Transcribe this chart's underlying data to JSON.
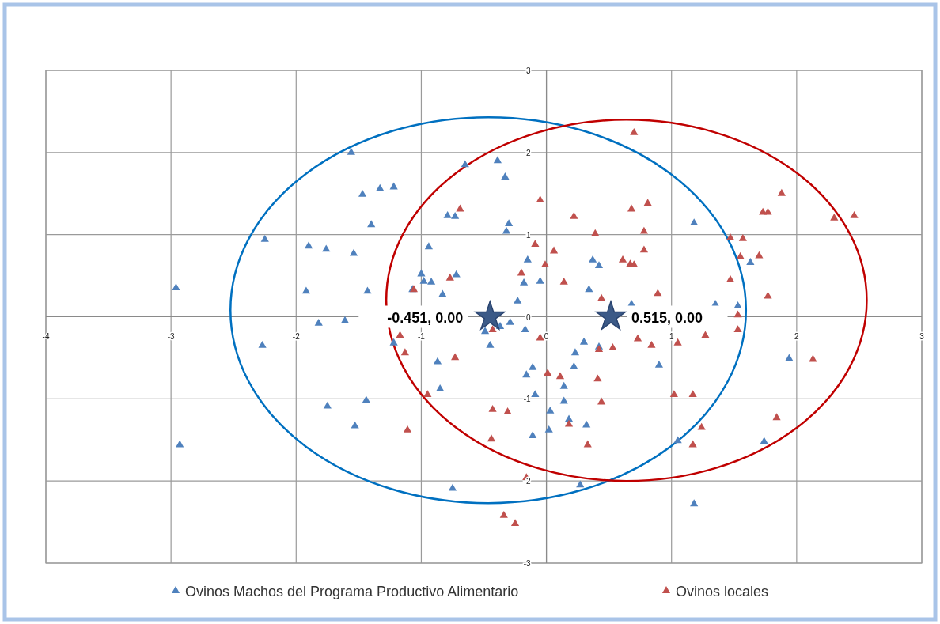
{
  "chart_data": {
    "type": "scatter",
    "xlim": [
      -4,
      3
    ],
    "ylim": [
      -3,
      3
    ],
    "xticks": [
      -4,
      -3,
      -2,
      -1,
      0,
      1,
      2,
      3
    ],
    "yticks": [
      -3,
      -2,
      -1,
      0,
      1,
      2,
      3
    ],
    "grid": true,
    "legend": "bottom",
    "series": [
      {
        "name": "Ovinos Machos del Programa Productivo Alimentario",
        "marker": "triangle",
        "color": "#4f81bd",
        "x": [
          -2.96,
          -2.93,
          -2.25,
          -2.27,
          -1.9,
          -1.92,
          -1.76,
          -1.82,
          -1.75,
          -1.61,
          -1.56,
          -1.54,
          -1.53,
          -1.47,
          -1.43,
          -1.44,
          -1.4,
          -1.33,
          -1.22,
          -1.22,
          -1.07,
          -1.0,
          -0.98,
          -0.92,
          -0.94,
          -0.87,
          -0.85,
          -0.83,
          -0.72,
          -0.79,
          -0.73,
          -0.65,
          -0.39,
          -0.33,
          -0.3,
          -0.32,
          -0.15,
          0.42,
          0.37,
          -0.18,
          -0.05,
          -0.23,
          0.34,
          -0.49,
          -0.37,
          -0.29,
          -0.17,
          -0.45,
          -0.11,
          -0.16,
          -0.09,
          0.03,
          -0.11,
          0.02,
          0.14,
          0.14,
          0.22,
          0.23,
          0.3,
          0.42,
          0.18,
          0.32,
          -0.75,
          0.27,
          1.18,
          1.63,
          1.53,
          1.35,
          0.68,
          0.9,
          1.94,
          1.05,
          1.74,
          1.18
        ],
        "values": [
          0.35,
          -1.56,
          0.94,
          -0.35,
          0.86,
          0.31,
          0.82,
          -0.08,
          -1.09,
          -0.05,
          2.0,
          0.77,
          -1.33,
          1.49,
          0.31,
          -1.02,
          1.12,
          1.56,
          1.58,
          -0.32,
          0.33,
          0.52,
          0.43,
          0.42,
          0.85,
          -0.55,
          -0.88,
          0.27,
          0.51,
          1.23,
          1.22,
          1.85,
          1.9,
          1.7,
          1.13,
          1.04,
          0.69,
          0.62,
          0.69,
          0.41,
          0.43,
          0.19,
          0.33,
          -0.18,
          -0.12,
          -0.07,
          -0.16,
          -0.35,
          -0.62,
          -0.71,
          -0.95,
          -1.15,
          -1.45,
          -1.38,
          -0.85,
          -1.03,
          -0.61,
          -0.44,
          -0.31,
          -0.37,
          -1.25,
          -1.32,
          -2.09,
          -2.05,
          1.14,
          0.66,
          0.13,
          0.15,
          0.15,
          -0.59,
          -0.51,
          -1.51,
          -1.52,
          -2.28
        ]
      },
      {
        "name": "Ovinos locales",
        "marker": "triangle",
        "color": "#c0504d",
        "x": [
          -0.69,
          -0.05,
          0.22,
          0.68,
          0.39,
          -0.09,
          0.06,
          -0.01,
          -0.2,
          0.14,
          0.61,
          0.67,
          0.7,
          -0.77,
          -1.06,
          0.44,
          0.7,
          1.88,
          1.73,
          1.77,
          2.3,
          2.46,
          0.81,
          0.78,
          0.78,
          1.47,
          1.57,
          1.55,
          1.7,
          1.47,
          0.89,
          1.77,
          1.53,
          1.53,
          0.73,
          0.84,
          1.05,
          1.27,
          2.13,
          1.02,
          1.17,
          1.84,
          1.24,
          1.17,
          -1.17,
          -1.13,
          -0.73,
          -0.43,
          -0.05,
          0.01,
          0.11,
          0.42,
          0.53,
          0.41,
          0.44,
          -0.95,
          -0.43,
          -0.31,
          -1.11,
          -0.44,
          0.18,
          0.33,
          -0.16,
          -0.34,
          -0.25
        ],
        "values": [
          1.31,
          1.42,
          1.22,
          1.31,
          1.01,
          0.88,
          0.8,
          0.63,
          0.53,
          0.42,
          0.69,
          0.64,
          0.63,
          0.47,
          0.33,
          0.22,
          2.24,
          1.5,
          1.27,
          1.27,
          1.2,
          1.23,
          1.38,
          1.04,
          0.81,
          0.96,
          0.95,
          0.73,
          0.74,
          0.45,
          0.28,
          0.25,
          0.02,
          -0.16,
          -0.27,
          -0.35,
          -0.32,
          -0.23,
          -0.52,
          -0.95,
          -0.95,
          -1.23,
          -1.35,
          -1.56,
          -0.23,
          -0.44,
          -0.5,
          -0.16,
          -0.26,
          -0.69,
          -0.73,
          -0.4,
          -0.38,
          -0.76,
          -1.04,
          -0.95,
          -1.13,
          -1.16,
          -1.38,
          -1.49,
          -1.31,
          -1.56,
          -1.96,
          -2.42,
          -2.52
        ]
      },
      {
        "marker": "star",
        "color": "#3c5a87",
        "x": [
          -0.451,
          0.515
        ],
        "values": [
          0,
          0
        ]
      }
    ],
    "annotations": [
      {
        "text": "-0.451, 0.00",
        "x": -0.451,
        "y": 0
      },
      {
        "text": "0.515, 0.00",
        "x": 0.515,
        "y": 0
      }
    ]
  }
}
